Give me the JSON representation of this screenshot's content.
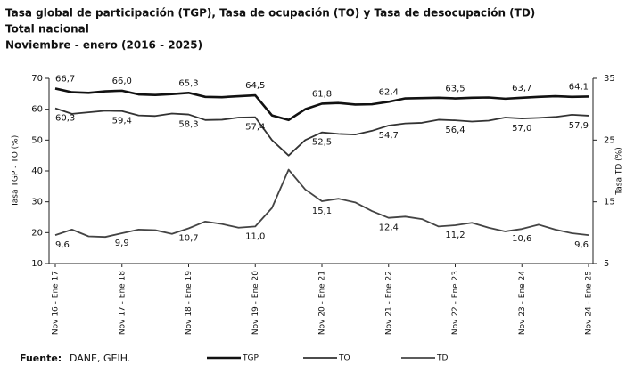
{
  "chart_data": {
    "type": "line",
    "title": "Tasa global de participación (TGP), Tasa de ocupación (TO) y Tasa de desocupación (TD)",
    "subtitle": "Total nacional",
    "period": "Noviembre - enero (2016 - 2025)",
    "ylabel": "Tasa TGP - TO (%)",
    "y2label": "Tasa TD (%)",
    "ylim": [
      10,
      70
    ],
    "yticks": [
      10,
      20,
      30,
      40,
      50,
      60,
      70
    ],
    "y2lim": [
      5,
      35
    ],
    "y2ticks": [
      5,
      15,
      25,
      35
    ],
    "categories": [
      "Nov 16 - Ene 17",
      null,
      null,
      null,
      "Nov 17 - Ene 18",
      null,
      null,
      null,
      "Nov 18 - Ene 19",
      null,
      null,
      null,
      "Nov 19 - Ene 20",
      null,
      null,
      null,
      "Nov 20 - Ene 21",
      null,
      null,
      null,
      "Nov 21 - Ene 22",
      null,
      null,
      null,
      "Nov 22 - Ene 23",
      null,
      null,
      null,
      "Nov 23 - Ene 24",
      null,
      null,
      null,
      "Nov 24 - Ene 25"
    ],
    "series": [
      {
        "name": "TGP",
        "color": "#111111",
        "width": 2.6,
        "values": [
          66.7,
          65.5,
          65.3,
          65.8,
          66.0,
          64.8,
          64.6,
          64.9,
          65.3,
          64.0,
          63.9,
          64.2,
          64.5,
          58.0,
          56.5,
          60.0,
          61.8,
          62.0,
          61.5,
          61.6,
          62.4,
          63.5,
          63.6,
          63.7,
          63.5,
          63.7,
          63.8,
          63.4,
          63.7,
          64.0,
          64.2,
          64.0,
          64.1
        ],
        "value_labels": [
          "66,7",
          null,
          null,
          null,
          "66,0",
          null,
          null,
          null,
          "65,3",
          null,
          null,
          null,
          "64,5",
          null,
          null,
          null,
          "61,8",
          null,
          null,
          null,
          "62,4",
          null,
          null,
          null,
          "63,5",
          null,
          null,
          null,
          "63,7",
          null,
          null,
          null,
          "64,1"
        ]
      },
      {
        "name": "TO",
        "color": "#333333",
        "width": 1.8,
        "values": [
          60.3,
          58.5,
          59.0,
          59.5,
          59.4,
          58.0,
          57.8,
          58.6,
          58.3,
          56.5,
          56.6,
          57.3,
          57.4,
          50.0,
          45.0,
          50.0,
          52.5,
          52.0,
          51.8,
          53.0,
          54.7,
          55.4,
          55.6,
          56.6,
          56.4,
          56.0,
          56.3,
          57.3,
          57.0,
          57.2,
          57.5,
          58.2,
          57.9
        ],
        "value_labels": [
          "60,3",
          null,
          null,
          null,
          "59,4",
          null,
          null,
          null,
          "58,3",
          null,
          null,
          null,
          "57,4",
          null,
          null,
          null,
          "52,5",
          null,
          null,
          null,
          "54,7",
          null,
          null,
          null,
          "56,4",
          null,
          null,
          null,
          "57,0",
          null,
          null,
          null,
          "57,9"
        ]
      },
      {
        "name": "TD",
        "color": "#444444",
        "width": 1.8,
        "axis": "y2",
        "values": [
          9.6,
          10.5,
          9.4,
          9.3,
          9.9,
          10.5,
          10.4,
          9.8,
          10.7,
          11.8,
          11.4,
          10.8,
          11.0,
          14.0,
          20.2,
          17.0,
          15.1,
          15.5,
          14.9,
          13.5,
          12.4,
          12.6,
          12.2,
          11.0,
          11.2,
          11.6,
          10.8,
          10.2,
          10.6,
          11.3,
          10.5,
          9.9,
          9.6
        ],
        "value_labels": [
          "9,6",
          null,
          null,
          null,
          "9,9",
          null,
          null,
          null,
          "10,7",
          null,
          null,
          null,
          "11,0",
          null,
          null,
          null,
          "15,1",
          null,
          null,
          null,
          "12,4",
          null,
          null,
          null,
          "11,2",
          null,
          null,
          null,
          "10,6",
          null,
          null,
          null,
          "9,6"
        ]
      }
    ],
    "source": {
      "label": "Fuente:",
      "text": "DANE, GEIH."
    }
  }
}
